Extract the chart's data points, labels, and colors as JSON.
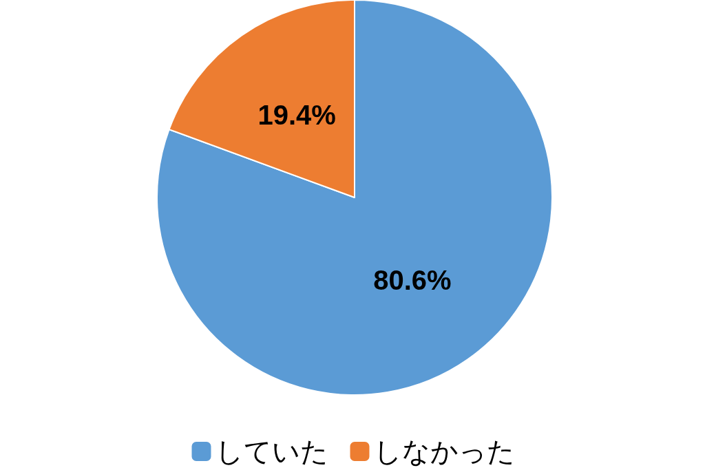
{
  "chart_data": {
    "type": "pie",
    "categories": [
      "していた",
      "しなかった"
    ],
    "values": [
      80.6,
      19.4
    ],
    "colors": [
      "#5b9bd5",
      "#ed7d31"
    ],
    "value_labels": [
      "80.6%",
      "19.4%"
    ],
    "legend": "bottom"
  }
}
